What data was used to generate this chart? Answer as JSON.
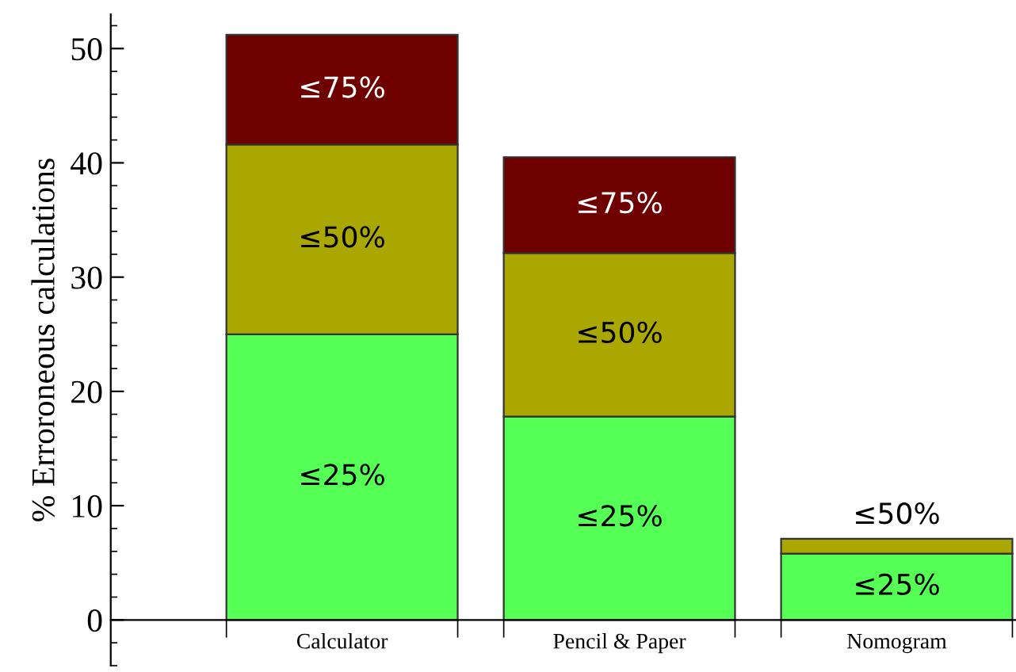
{
  "chart_data": {
    "type": "bar",
    "stacked": true,
    "ylabel": "% Erroroneous calculations",
    "categories": [
      "Calculator",
      "Pencil & Paper",
      "Nomogram"
    ],
    "series": [
      {
        "name": "≤25%",
        "color": "#55ff55",
        "values": [
          25,
          17.8,
          5.8
        ]
      },
      {
        "name": "≤50%",
        "color": "#aaa800",
        "values": [
          16.6,
          14.3,
          1.3
        ]
      },
      {
        "name": "≤75%",
        "color": "#6e0000",
        "values": [
          9.6,
          8.4,
          null
        ]
      }
    ],
    "ylim": [
      -4,
      53
    ],
    "yticks": [
      0,
      10,
      20,
      30,
      40,
      50
    ],
    "grid": false,
    "legend": false
  }
}
